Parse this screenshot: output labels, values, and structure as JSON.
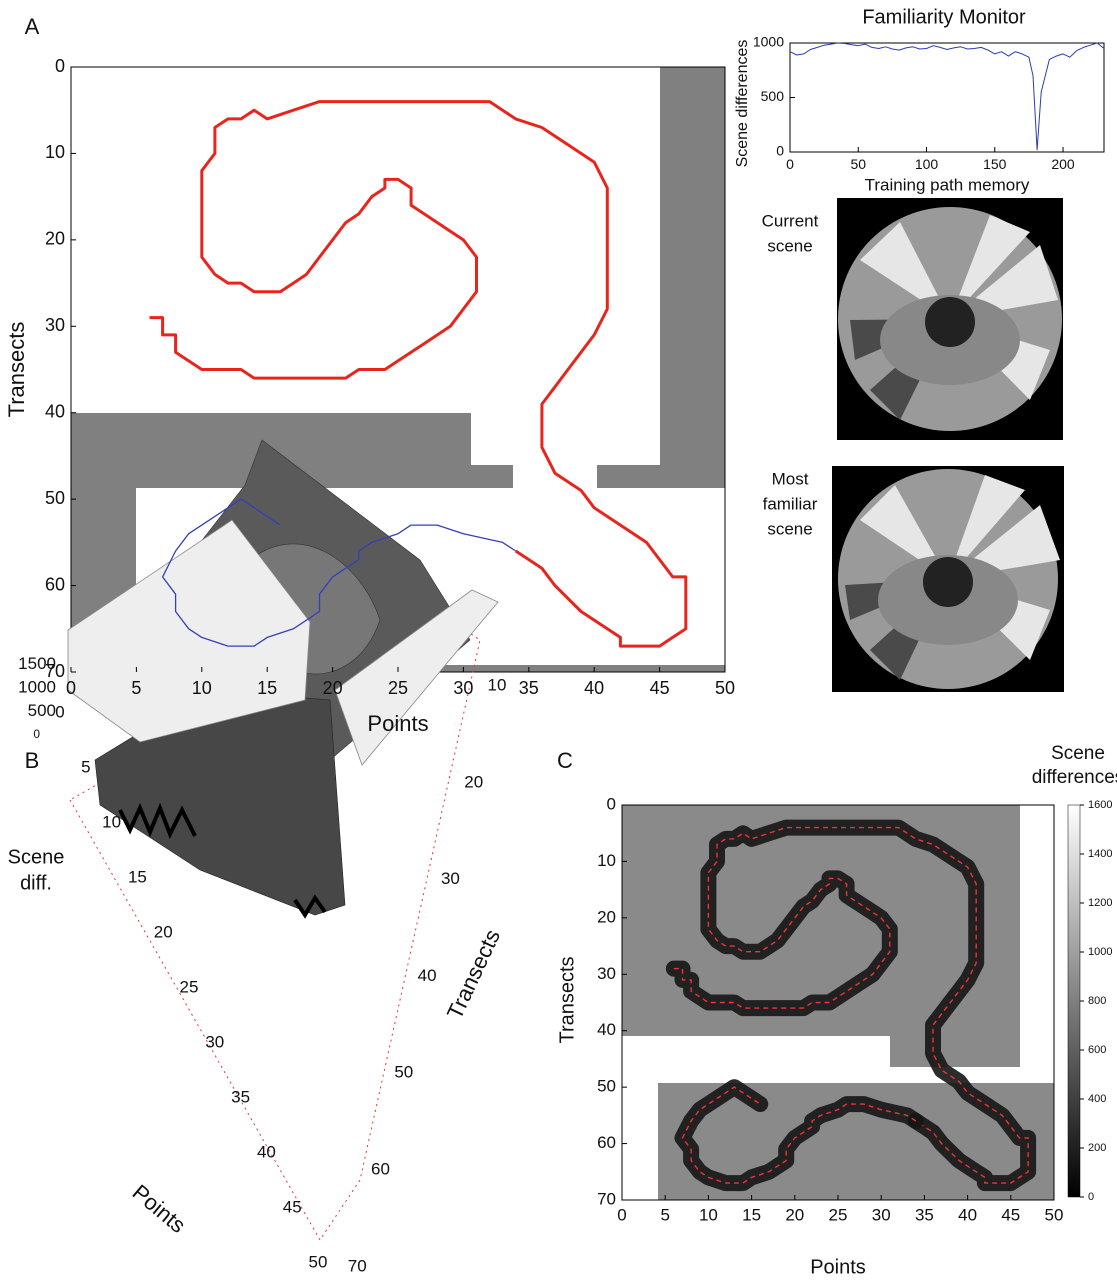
{
  "chart_data": [
    {
      "type": "line",
      "panel": "A",
      "xlabel": "Points",
      "ylabel": "Transects",
      "xlim": [
        0,
        50
      ],
      "ylim": [
        70,
        0
      ],
      "xticks": [
        0,
        5,
        10,
        15,
        20,
        25,
        30,
        35,
        40,
        45,
        50
      ],
      "yticks": [
        0,
        10,
        20,
        30,
        40,
        50,
        60,
        70
      ],
      "series": [
        {
          "color": "#e8251c",
          "width": 3,
          "x": [
            6,
            7,
            7,
            8,
            8,
            9,
            10,
            13,
            14,
            21,
            22,
            24,
            25,
            27,
            29,
            30,
            31,
            31,
            30,
            29,
            27,
            26,
            26,
            25,
            24,
            24,
            23,
            22,
            21,
            20,
            19,
            18,
            17,
            16,
            14,
            13,
            12,
            11,
            10,
            10,
            10,
            11,
            11,
            12,
            13,
            14,
            15,
            17,
            19,
            32,
            33,
            34,
            36,
            38,
            40,
            41,
            41,
            40,
            39,
            38,
            37,
            36,
            36,
            37,
            39,
            40,
            42,
            44,
            45,
            46,
            47,
            47,
            46,
            45,
            42,
            42,
            41,
            39,
            37,
            36,
            34
          ],
          "values": [
            29,
            29,
            31,
            31,
            33,
            34,
            35,
            35,
            36,
            36,
            35,
            35,
            34,
            32,
            30,
            28,
            26,
            22,
            20,
            19,
            17,
            16,
            14,
            13,
            13,
            14,
            15,
            17,
            18,
            20,
            22,
            24,
            25,
            26,
            26,
            25,
            25,
            24,
            22,
            20,
            12,
            10,
            7,
            6,
            6,
            5,
            6,
            5,
            4,
            4,
            5,
            6,
            7,
            9,
            11,
            14,
            28,
            31,
            33,
            35,
            37,
            39,
            44,
            47,
            49,
            51,
            53,
            55,
            57,
            59,
            59,
            65,
            66,
            67,
            67,
            66,
            65,
            63,
            60,
            58,
            56
          ]
        },
        {
          "color": "#3340b8",
          "width": 1.3,
          "x": [
            34,
            33,
            30,
            28,
            26,
            25,
            23,
            22,
            22,
            20,
            19,
            19,
            17,
            15,
            14,
            12,
            10,
            9,
            8,
            8,
            7,
            8,
            9,
            10,
            11,
            13,
            14,
            16
          ],
          "values": [
            56,
            55,
            54,
            53,
            53,
            54,
            55,
            56,
            57,
            59,
            61,
            63,
            65,
            66,
            67,
            67,
            66,
            65,
            63,
            61,
            59,
            56,
            54,
            53,
            52,
            50,
            51,
            53
          ]
        }
      ]
    },
    {
      "type": "line",
      "title": "Familiarity Monitor",
      "xlabel": "Training path memory",
      "ylabel": "Scene differences",
      "xlim": [
        0,
        230
      ],
      "ylim": [
        0,
        1000
      ],
      "xticks": [
        0,
        50,
        100,
        150,
        200
      ],
      "yticks": [
        0,
        500,
        1000
      ],
      "series": [
        {
          "color": "#2b3cb0",
          "width": 1,
          "x": [
            0,
            5,
            10,
            15,
            20,
            25,
            30,
            35,
            40,
            45,
            50,
            55,
            60,
            65,
            70,
            75,
            80,
            85,
            90,
            95,
            100,
            105,
            110,
            115,
            120,
            125,
            130,
            135,
            140,
            145,
            150,
            155,
            160,
            165,
            170,
            175,
            178,
            181,
            184,
            190,
            195,
            200,
            205,
            210,
            215,
            220,
            225,
            230
          ],
          "values": [
            920,
            890,
            900,
            940,
            960,
            980,
            990,
            1000,
            995,
            985,
            975,
            990,
            960,
            950,
            965,
            945,
            935,
            955,
            965,
            945,
            950,
            975,
            960,
            940,
            955,
            965,
            945,
            950,
            960,
            935,
            900,
            920,
            880,
            920,
            900,
            870,
            700,
            20,
            550,
            850,
            880,
            900,
            870,
            930,
            960,
            980,
            1000,
            950
          ]
        }
      ],
      "scenes": [
        {
          "label": [
            "Current",
            "scene"
          ]
        },
        {
          "label": [
            "Most",
            "familiar",
            "scene"
          ]
        }
      ]
    },
    {
      "type": "surface3d",
      "panel": "B",
      "xlabel": "Points",
      "ylabel": "Transects",
      "zlabel": [
        "Scene",
        "diff."
      ],
      "xticks": [
        0,
        5,
        10,
        15,
        20,
        25,
        30,
        35,
        40,
        45,
        50
      ],
      "yticks": [
        10,
        20,
        30,
        40,
        50,
        60,
        70
      ],
      "zticks": [
        0,
        500,
        1000,
        1500
      ]
    },
    {
      "type": "heatmap",
      "panel": "C",
      "xlabel": "Points",
      "ylabel": "Transects",
      "colorbar_title": [
        "Scene",
        "differences"
      ],
      "xlim": [
        0,
        50
      ],
      "ylim": [
        70,
        0
      ],
      "clim": [
        0,
        1600
      ],
      "xticks": [
        0,
        5,
        10,
        15,
        20,
        25,
        30,
        35,
        40,
        45,
        50
      ],
      "yticks": [
        0,
        10,
        20,
        30,
        40,
        50,
        60,
        70
      ],
      "cticks": [
        0,
        200,
        400,
        600,
        800,
        1000,
        1200,
        1400,
        1600
      ]
    }
  ]
}
